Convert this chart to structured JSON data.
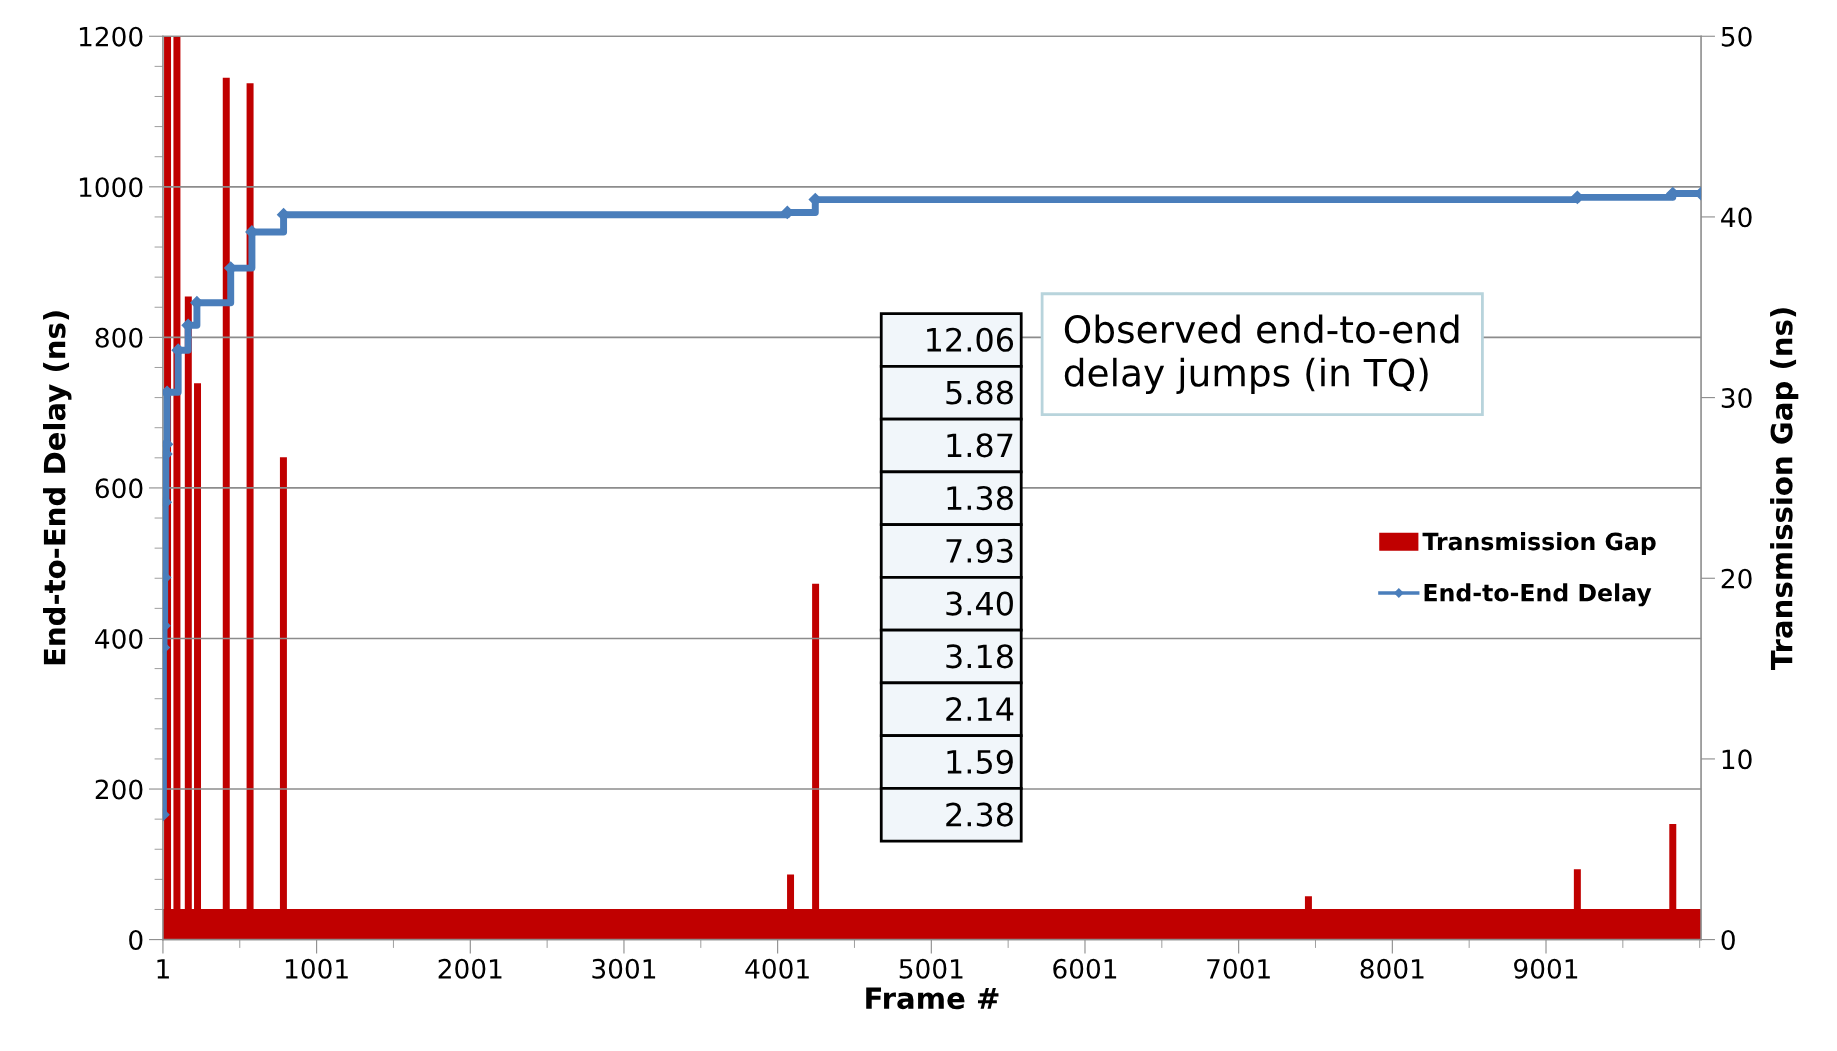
{
  "chart_data": {
    "type": "bar",
    "xlabel": "Frame #",
    "ylabel": "End-to-End Delay (ns)",
    "y2label": "Transmission Gap (ns)",
    "xlim": [
      1,
      10010
    ],
    "xticks": [
      1,
      1001,
      2001,
      3001,
      4001,
      5001,
      6001,
      7001,
      8001,
      9001
    ],
    "ylim": [
      0,
      1200
    ],
    "yticks": [
      0,
      200,
      400,
      600,
      800,
      1000,
      1200
    ],
    "y2lim": [
      0,
      50
    ],
    "y2ticks": [
      0,
      10,
      20,
      30,
      40,
      50
    ],
    "grid": "y",
    "legend": "right",
    "series": [
      {
        "name": "Transmission Gap",
        "axis": "y2",
        "color": "#c00000",
        "x": [
          31,
          92,
          166,
          226,
          413,
          568,
          785,
          4085,
          4248,
          7455,
          9205,
          9826
        ],
        "values": [
          50,
          50,
          35.6,
          30.8,
          47.7,
          47.4,
          26.7,
          3.6,
          19.7,
          2.4,
          3.9,
          6.4
        ]
      },
      {
        "type": "area",
        "axis": "y2",
        "color": "#c00000",
        "x": [
          1,
          10009
        ],
        "values": [
          1.7,
          1.7
        ]
      },
      {
        "name": "End-to-End Delay",
        "type": "step",
        "axis": "y",
        "color": "#4a7ebb",
        "marker": "diamond",
        "x": [
          1,
          4,
          8,
          12,
          16,
          20,
          24,
          28,
          100,
          165,
          222,
          442,
          580,
          786,
          4064,
          4246,
          9205,
          9826,
          10009
        ],
        "values": [
          166,
          388,
          417,
          481,
          581,
          645,
          658,
          727,
          783,
          816,
          846,
          892,
          940,
          963,
          966,
          983,
          986,
          991,
          991
        ]
      }
    ],
    "annotations": [
      "Observed end-to-end\ndelay jumps (in TQ)",
      "12.06",
      "5.88",
      "1.87",
      "1.38",
      "7.93",
      "3.40",
      "3.18",
      "2.14",
      "1.59",
      "2.38"
    ]
  }
}
